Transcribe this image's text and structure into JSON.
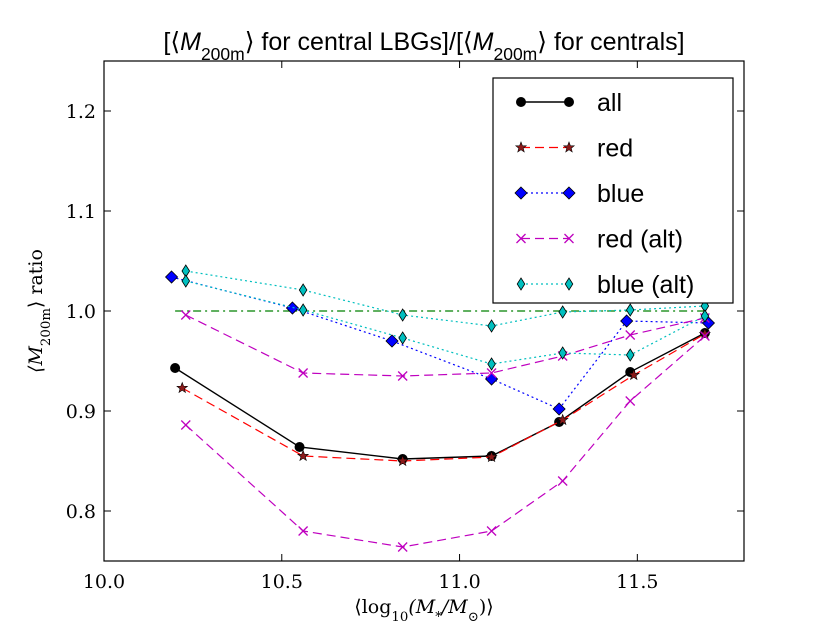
{
  "chart_data": {
    "type": "line",
    "title": "[⟨M200m⟩ for central LBGs]/[⟨M200m⟩ for centrals]",
    "title_parts": [
      "[⟨",
      "M",
      "200m",
      "⟩ for central LBGs]/[⟨",
      "M",
      "200m",
      "⟩ for centrals]"
    ],
    "xlabel": "⟨log10(M*/M⊙)⟩",
    "xlabel_parts": [
      "⟨log",
      "10",
      "(M",
      "*",
      "/M",
      "⊙",
      ")⟩"
    ],
    "ylabel": "⟨M200m⟩ ratio",
    "ylabel_parts": [
      "⟨M",
      "200m",
      "⟩ ratio"
    ],
    "xlim": [
      10.0,
      11.8
    ],
    "ylim": [
      0.75,
      1.25
    ],
    "xticks": [
      10.0,
      10.5,
      11.0,
      11.5
    ],
    "xtick_labels": [
      "10.0",
      "10.5",
      "11.0",
      "11.5"
    ],
    "yticks": [
      0.8,
      0.9,
      1.0,
      1.1,
      1.2
    ],
    "ytick_labels": [
      "0.8",
      "0.9",
      "1.0",
      "1.1",
      "1.2"
    ],
    "grid": false,
    "legend_position": "top-right",
    "reference_line": {
      "y": 1.0,
      "x": [
        10.2,
        11.7
      ],
      "color": "#008000",
      "style": "dashdot"
    },
    "series": [
      {
        "name": "all",
        "color": "#000000",
        "style": "solid",
        "marker": "circle",
        "x": [
          10.2,
          10.55,
          10.84,
          11.09,
          11.28,
          11.48,
          11.69
        ],
        "y": [
          0.943,
          0.864,
          0.852,
          0.855,
          0.889,
          0.939,
          0.978
        ]
      },
      {
        "name": "red",
        "color": "#ff0000",
        "style": "dashed",
        "marker": "star",
        "x": [
          10.22,
          10.56,
          10.84,
          11.09,
          11.29,
          11.49,
          11.69
        ],
        "y": [
          0.923,
          0.855,
          0.85,
          0.854,
          0.891,
          0.936,
          0.977
        ]
      },
      {
        "name": "blue",
        "color": "#0000ff",
        "style": "dotted",
        "marker": "diamond",
        "x": [
          10.19,
          10.53,
          10.81,
          11.09,
          11.28,
          11.47,
          11.7
        ],
        "y": [
          1.034,
          1.003,
          0.97,
          0.932,
          0.902,
          0.99,
          0.988
        ]
      },
      {
        "name": "red (alt)",
        "color": "#bf00bf",
        "style": "dashed",
        "marker": "x",
        "x": [
          10.23,
          10.56,
          10.84,
          11.09,
          11.29,
          11.48,
          11.69
        ],
        "y": [
          0.996,
          0.938,
          0.935,
          0.938,
          0.955,
          0.976,
          0.993
        ]
      },
      {
        "name": "red (alt)",
        "color": "#bf00bf",
        "style": "dashed",
        "marker": "x",
        "hidden_in_legend": true,
        "x": [
          10.23,
          10.56,
          10.84,
          11.09,
          11.29,
          11.48,
          11.69
        ],
        "y": [
          0.886,
          0.78,
          0.764,
          0.78,
          0.83,
          0.91,
          0.975
        ]
      },
      {
        "name": "blue (alt)",
        "color": "#00bfbf",
        "style": "dotted",
        "marker": "thin-diamond",
        "x": [
          10.23,
          10.56,
          10.84,
          11.09,
          11.29,
          11.48,
          11.69
        ],
        "y": [
          1.04,
          1.021,
          0.996,
          0.985,
          0.999,
          1.001,
          1.005
        ]
      },
      {
        "name": "blue (alt)",
        "color": "#00bfbf",
        "style": "dotted",
        "marker": "thin-diamond",
        "hidden_in_legend": true,
        "x": [
          10.23,
          10.56,
          10.84,
          11.09,
          11.29,
          11.48,
          11.69
        ],
        "y": [
          1.03,
          1.001,
          0.973,
          0.947,
          0.958,
          0.956,
          0.995
        ]
      }
    ]
  }
}
